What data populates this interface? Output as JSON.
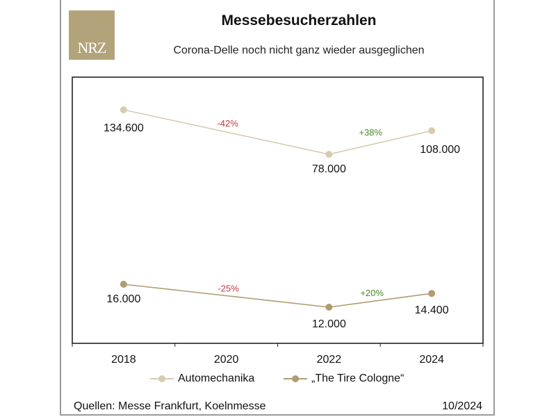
{
  "logo": {
    "text": "NRZ",
    "color": "#b3a37a"
  },
  "header": {
    "title": "Messebesucherzahlen",
    "subtitle": "Corona-Delle noch nicht ganz wieder ausgeglichen"
  },
  "footer": {
    "source": "Quellen: Messe Frankfurt, Koelnmesse",
    "date": "10/2024"
  },
  "legend": [
    {
      "label": "Automechanika",
      "color": "#d6ccb0"
    },
    {
      "label": "„The Tire Cologne“",
      "color": "#b09c72"
    }
  ],
  "chart_data": {
    "type": "line",
    "title": "Messebesucherzahlen",
    "subtitle": "Corona-Delle noch nicht ganz wieder ausgeglichen",
    "categories": [
      "2018",
      "2020",
      "2022",
      "2024"
    ],
    "grid": false,
    "legend_position": "bottom",
    "series": [
      {
        "name": "Automechanika",
        "color": "#d6ccb0",
        "points": [
          {
            "x": 2018,
            "y": 134600,
            "label": "134.600"
          },
          {
            "x": 2022,
            "y": 78000,
            "label": "78.000"
          },
          {
            "x": 2024,
            "y": 108000,
            "label": "108.000"
          }
        ],
        "annotations": [
          {
            "text": "-42%",
            "color": "#c0393b",
            "between": [
              2018,
              2022
            ]
          },
          {
            "text": "+38%",
            "color": "#4a8a2a",
            "between": [
              2022,
              2024
            ]
          }
        ]
      },
      {
        "name": "„The Tire Cologne“",
        "color": "#b09c72",
        "points": [
          {
            "x": 2018,
            "y": 16000,
            "label": "16.000"
          },
          {
            "x": 2022,
            "y": 12000,
            "label": "12.000"
          },
          {
            "x": 2024,
            "y": 14400,
            "label": "14.400"
          }
        ],
        "annotations": [
          {
            "text": "-25%",
            "color": "#c0393b",
            "between": [
              2018,
              2022
            ]
          },
          {
            "text": "+20%",
            "color": "#4a8a2a",
            "between": [
              2022,
              2024
            ]
          }
        ]
      }
    ]
  }
}
